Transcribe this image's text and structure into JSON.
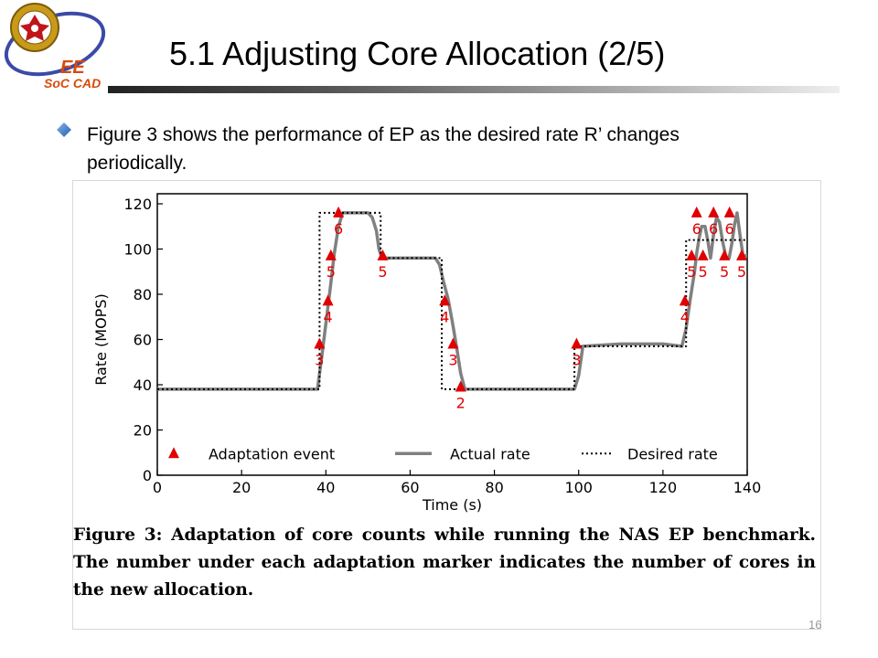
{
  "slide": {
    "title": "5.1 Adjusting Core Allocation (2/5)",
    "bullet_text": "Figure 3 shows the performance of EP as the desired rate R’ changes periodically.",
    "slide_number": "16",
    "logo": {
      "text_ee": "EE",
      "text_soc": "SoC CAD"
    }
  },
  "figure": {
    "caption_label": "Figure 3:",
    "caption_text": "Adaptation of core counts while running the NAS EP benchmark. The number under each adaptation marker indicates the number of cores in the new allocation."
  },
  "chart_data": {
    "type": "line",
    "xlabel": "Time (s)",
    "ylabel": "Rate (MOPS)",
    "xlim": [
      0,
      140
    ],
    "ylim": [
      0,
      125
    ],
    "x_ticks": [
      0,
      20,
      40,
      60,
      80,
      100,
      120,
      140
    ],
    "y_ticks": [
      0,
      20,
      40,
      60,
      80,
      100,
      120
    ],
    "grid": false,
    "legend_position": "bottom",
    "series": [
      {
        "name": "Actual rate",
        "style": "solid",
        "color": "#808080",
        "x": [
          0,
          38,
          39,
          40,
          41,
          42,
          43,
          44,
          50,
          51,
          52,
          52.6,
          53.3,
          54,
          66,
          67,
          68,
          69,
          70,
          71,
          72,
          73,
          80,
          90,
          99,
          100,
          101,
          110,
          120,
          124.5,
          125.5,
          126.5,
          127.5,
          128,
          128.6,
          129.2,
          130,
          130.7,
          131.3,
          132,
          132.7,
          133.4,
          134.2,
          135,
          135.7,
          136.3,
          137,
          137.6,
          138.3,
          139,
          140
        ],
        "y": [
          38,
          38,
          52,
          67,
          82,
          98,
          110,
          116,
          116,
          114,
          108,
          100,
          96,
          96,
          96,
          93,
          85,
          78,
          68,
          57,
          45,
          38,
          38,
          38,
          38,
          44,
          57,
          58,
          58,
          57,
          65,
          78,
          90,
          98,
          105,
          110,
          110,
          103,
          96,
          106,
          114,
          112,
          103,
          96,
          96,
          102,
          111,
          116,
          106,
          97,
          97
        ]
      },
      {
        "name": "Desired rate",
        "style": "dotted",
        "color": "#000000",
        "x": [
          0,
          38.5,
          38.5,
          53,
          53,
          67.5,
          67.5,
          99,
          99,
          125.5,
          125.5,
          140
        ],
        "y": [
          38,
          38,
          116,
          116,
          96,
          96,
          38,
          38,
          57,
          57,
          104,
          104
        ]
      }
    ],
    "markers": {
      "name": "Adaptation event",
      "color": "#e00000",
      "points": [
        {
          "x": 38.5,
          "y": 58,
          "label": "3"
        },
        {
          "x": 40.5,
          "y": 77,
          "label": "4"
        },
        {
          "x": 41.2,
          "y": 97,
          "label": "5"
        },
        {
          "x": 43,
          "y": 116,
          "label": "6"
        },
        {
          "x": 53.5,
          "y": 97,
          "label": "5"
        },
        {
          "x": 68.2,
          "y": 77,
          "label": "4"
        },
        {
          "x": 70.2,
          "y": 58,
          "label": "3"
        },
        {
          "x": 72,
          "y": 39,
          "label": "2"
        },
        {
          "x": 99.5,
          "y": 58,
          "label": "3"
        },
        {
          "x": 125.2,
          "y": 77,
          "label": "4"
        },
        {
          "x": 126.8,
          "y": 97,
          "label": "5"
        },
        {
          "x": 128,
          "y": 116,
          "label": "6"
        },
        {
          "x": 129.5,
          "y": 97,
          "label": "5"
        },
        {
          "x": 132,
          "y": 116,
          "label": "6"
        },
        {
          "x": 134.6,
          "y": 97,
          "label": "5"
        },
        {
          "x": 135.8,
          "y": 116,
          "label": "6"
        },
        {
          "x": 138.7,
          "y": 97,
          "label": "5"
        }
      ]
    },
    "legend": [
      "Adaptation event",
      "Actual rate",
      "Desired rate"
    ]
  }
}
